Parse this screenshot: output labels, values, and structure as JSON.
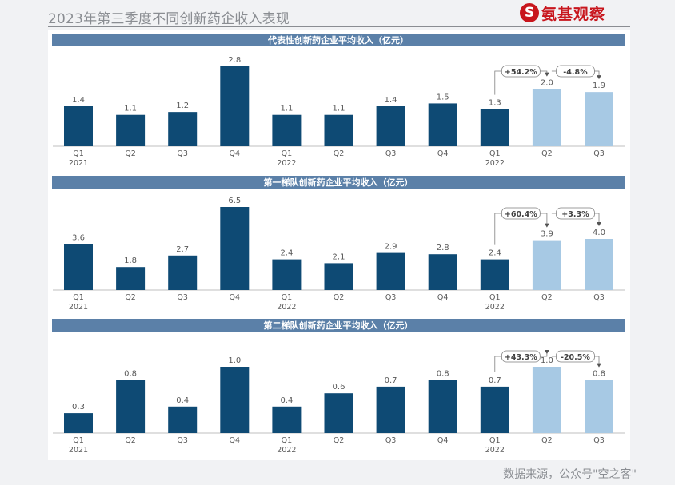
{
  "header": {
    "title": "2023年第三季度不同创新药企收入表现"
  },
  "logo": {
    "mark": "S",
    "text": "氨基观察"
  },
  "source": {
    "text": "数据来源，公众号\"空之客\""
  },
  "colors": {
    "dark_bar": "#0e4a74",
    "light_bar": "#a7c9e4",
    "title_band": "#5b80a8",
    "label": "#595959"
  },
  "chart_data": [
    {
      "type": "bar",
      "title": "代表性创新药企业平均收入（亿元）",
      "categories": [
        "Q1",
        "Q2",
        "Q3",
        "Q4",
        "Q1",
        "Q2",
        "Q3",
        "Q4",
        "Q1",
        "Q2",
        "Q3"
      ],
      "year_labels": [
        "2021",
        "",
        "",
        "",
        "2022",
        "",
        "",
        "",
        "2022",
        "",
        ""
      ],
      "values": [
        1.4,
        1.1,
        1.2,
        2.8,
        1.1,
        1.1,
        1.4,
        1.5,
        1.3,
        2.0,
        1.9
      ],
      "value_labels": [
        "1.4",
        "1.1",
        "1.2",
        "2.8",
        "1.1",
        "1.1",
        "1.4",
        "1.5",
        "1.3",
        "2.0",
        "1.9"
      ],
      "highlight_indices": [
        9,
        10
      ],
      "changes": [
        "+54.2%",
        "-4.8%"
      ],
      "ylim": [
        0,
        2.8
      ]
    },
    {
      "type": "bar",
      "title": "第一梯队创新药企业平均收入（亿元）",
      "categories": [
        "Q1",
        "Q2",
        "Q3",
        "Q4",
        "Q1",
        "Q2",
        "Q3",
        "Q4",
        "Q1",
        "Q2",
        "Q3"
      ],
      "year_labels": [
        "2021",
        "",
        "",
        "",
        "2022",
        "",
        "",
        "",
        "2022",
        "",
        ""
      ],
      "values": [
        3.6,
        1.8,
        2.7,
        6.5,
        2.4,
        2.1,
        2.9,
        2.8,
        2.4,
        3.9,
        4.0
      ],
      "value_labels": [
        "3.6",
        "1.8",
        "2.7",
        "6.5",
        "2.4",
        "2.1",
        "2.9",
        "2.8",
        "2.4",
        "3.9",
        "4.0"
      ],
      "highlight_indices": [
        9,
        10
      ],
      "changes": [
        "+60.4%",
        "+3.3%"
      ],
      "ylim": [
        0,
        6.5
      ]
    },
    {
      "type": "bar",
      "title": "第二梯队创新药企业平均收入（亿元）",
      "categories": [
        "Q1",
        "Q2",
        "Q3",
        "Q4",
        "Q1",
        "Q2",
        "Q3",
        "Q4",
        "Q1",
        "Q2",
        "Q3"
      ],
      "year_labels": [
        "2021",
        "",
        "",
        "",
        "2022",
        "",
        "",
        "",
        "2022",
        "",
        ""
      ],
      "values": [
        0.3,
        0.8,
        0.4,
        1.0,
        0.4,
        0.6,
        0.7,
        0.8,
        0.7,
        1.0,
        0.8
      ],
      "value_labels": [
        "0.3",
        "0.8",
        "0.4",
        "1.0",
        "0.4",
        "0.6",
        "0.7",
        "0.8",
        "0.7",
        "1.0",
        "0.8"
      ],
      "highlight_indices": [
        9,
        10
      ],
      "changes": [
        "+43.3%",
        "-20.5%"
      ],
      "ylim": [
        0,
        1.0
      ]
    }
  ]
}
